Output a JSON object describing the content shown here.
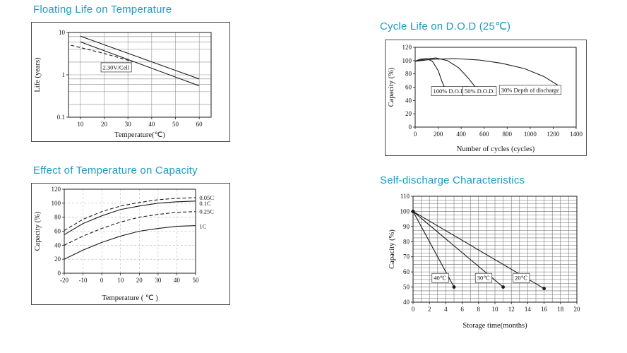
{
  "page": {
    "background": "#ffffff",
    "title_color": "#1d9bc2",
    "ink_color": "#1b1b1b"
  },
  "chart_data": [
    {
      "id": "floating-life",
      "type": "line",
      "title": "Floating Life on Temperature",
      "xlabel": "Temperature(℃)",
      "ylabel": "Life (years)",
      "xlim": [
        5,
        65
      ],
      "ylim": [
        0.1,
        10
      ],
      "y_scale": "log",
      "x_ticks": [
        10,
        20,
        30,
        40,
        50,
        60
      ],
      "y_ticks": [
        0.1,
        1,
        10
      ],
      "grid_x": [
        10,
        20,
        30,
        40,
        50,
        60
      ],
      "grid_y": [
        0.2,
        0.4,
        0.6,
        0.8,
        1,
        2,
        4,
        6,
        8
      ],
      "grid_color": "#8a8a8a",
      "legend": "none",
      "series": [
        {
          "name": "float-life-upper",
          "dash": "solid",
          "x": [
            10,
            60
          ],
          "y": [
            8.2,
            0.8
          ]
        },
        {
          "name": "float-life-lower",
          "dash": "solid",
          "x": [
            10,
            60
          ],
          "y": [
            6.0,
            0.55
          ]
        },
        {
          "name": "float-life-dashed",
          "dash": "dashed",
          "x": [
            6,
            20,
            32
          ],
          "y": [
            5.0,
            3.2,
            2.05
          ]
        }
      ],
      "annotations": [
        {
          "text": "2.30V/Cell",
          "x": 25,
          "y": 1.5,
          "box": true
        }
      ]
    },
    {
      "id": "cycle-life",
      "type": "line",
      "title": "Cycle Life on D.O.D (25℃)",
      "xlabel": "Number of cycles (cycles)",
      "ylabel": "Capacity (%)",
      "xlim": [
        0,
        1400
      ],
      "ylim": [
        0,
        120
      ],
      "x_ticks": [
        0,
        200,
        400,
        600,
        800,
        1000,
        1200,
        1400
      ],
      "y_ticks": [
        0,
        20,
        40,
        60,
        80,
        100,
        120
      ],
      "legend": "none",
      "series": [
        {
          "name": "dod-100",
          "dash": "solid",
          "x": [
            0,
            40,
            100,
            150,
            200,
            230,
            255
          ],
          "y": [
            99,
            102,
            103,
            99,
            85,
            70,
            60
          ]
        },
        {
          "name": "dod-50",
          "dash": "solid",
          "x": [
            0,
            80,
            180,
            280,
            380,
            460,
            520
          ],
          "y": [
            99,
            102,
            104,
            100,
            89,
            74,
            61
          ]
        },
        {
          "name": "dod-30",
          "dash": "solid",
          "x": [
            0,
            150,
            350,
            550,
            750,
            950,
            1120,
            1250
          ],
          "y": [
            99,
            102,
            103,
            101,
            96,
            88,
            76,
            62
          ]
        }
      ],
      "annotations": [
        {
          "text": "100% D.O.D.",
          "x": 300,
          "y": 54,
          "box": true
        },
        {
          "text": "50% D.O.D.",
          "x": 560,
          "y": 54,
          "box": true
        },
        {
          "text": "30% Depth of  discharge",
          "x": 1000,
          "y": 56,
          "box": true
        }
      ]
    },
    {
      "id": "temp-capacity",
      "type": "line",
      "title": "Effect of Temperature on Capacity",
      "xlabel": "Temperature ( ℃ )",
      "ylabel": "Capacity (%)",
      "xlim": [
        -20,
        50
      ],
      "ylim": [
        0,
        120
      ],
      "x_ticks": [
        -20,
        -10,
        0,
        10,
        20,
        30,
        40,
        50
      ],
      "y_ticks": [
        0,
        20,
        40,
        60,
        80,
        100,
        120
      ],
      "grid_x": [
        -10,
        0,
        10,
        20,
        30,
        40
      ],
      "grid_y": [
        20,
        40,
        60,
        80,
        100
      ],
      "grid_dash": true,
      "grid_color": "#b4b4b4",
      "legend": "right-edge-labels",
      "series": [
        {
          "name": "rate-0.05C",
          "dash": "dashed",
          "x": [
            -20,
            -10,
            0,
            10,
            20,
            30,
            40,
            50
          ],
          "y": [
            61,
            77,
            88,
            96,
            101,
            105,
            107,
            108
          ]
        },
        {
          "name": "rate-0.1C",
          "dash": "solid",
          "x": [
            -20,
            -10,
            0,
            10,
            20,
            30,
            40,
            50
          ],
          "y": [
            55,
            71,
            82,
            91,
            96,
            100,
            102,
            103
          ]
        },
        {
          "name": "rate-0.25C",
          "dash": "dashed",
          "x": [
            -20,
            -10,
            0,
            10,
            20,
            30,
            40,
            50
          ],
          "y": [
            40,
            53,
            64,
            73,
            80,
            84,
            87,
            88
          ]
        },
        {
          "name": "rate-1C",
          "dash": "solid",
          "x": [
            -20,
            -10,
            0,
            10,
            20,
            30,
            40,
            50
          ],
          "y": [
            20,
            33,
            44,
            53,
            60,
            64,
            67,
            68
          ]
        }
      ],
      "annotations": [
        {
          "text": "0.05C",
          "x": 52,
          "y": 108,
          "anchor": "start"
        },
        {
          "text": "0.1C",
          "x": 52,
          "y": 100,
          "anchor": "start"
        },
        {
          "text": "0.25C",
          "x": 52,
          "y": 88,
          "anchor": "start"
        },
        {
          "text": "1C",
          "x": 52,
          "y": 67,
          "anchor": "start"
        }
      ]
    },
    {
      "id": "self-discharge",
      "type": "line",
      "title": "Self-discharge Characteristics",
      "xlabel": "Storage time(months)",
      "ylabel": "Capacity (%)",
      "xlim": [
        0,
        20
      ],
      "ylim": [
        40,
        110
      ],
      "x_ticks": [
        0,
        2,
        4,
        6,
        8,
        10,
        12,
        14,
        16,
        18,
        20
      ],
      "y_ticks": [
        40,
        50,
        60,
        70,
        80,
        90,
        100,
        110
      ],
      "grid_x_step": 1,
      "grid_y_step": 2.5,
      "grid_color": "#6f6f6f",
      "legend": "inline-labels",
      "series": [
        {
          "name": "temp-40c",
          "dash": "solid",
          "marker": true,
          "x": [
            0,
            5
          ],
          "y": [
            100,
            50
          ]
        },
        {
          "name": "temp-30c",
          "dash": "solid",
          "marker": true,
          "x": [
            0,
            11
          ],
          "y": [
            100,
            50
          ]
        },
        {
          "name": "temp-20c",
          "dash": "solid",
          "marker": true,
          "x": [
            0,
            16
          ],
          "y": [
            100,
            49
          ]
        }
      ],
      "annotations": [
        {
          "text": "40℃",
          "x": 3.3,
          "y": 56,
          "box": true
        },
        {
          "text": "30℃",
          "x": 8.6,
          "y": 56,
          "box": true
        },
        {
          "text": "20℃",
          "x": 13.2,
          "y": 56,
          "box": true
        }
      ]
    }
  ]
}
